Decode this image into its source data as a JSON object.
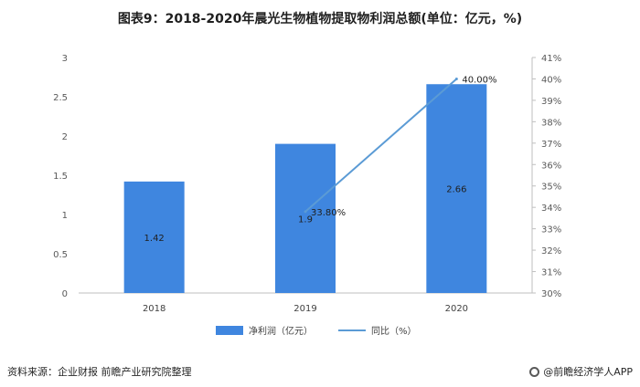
{
  "title": "图表9：2018-2020年晨光生物植物提取物利润总额(单位：亿元，%)",
  "footer": {
    "source": "资料来源：企业财报 前瞻产业研究院整理",
    "brand": "@前瞻经济学人APP"
  },
  "colors": {
    "bar": "#3f86df",
    "line": "#5b9bd5",
    "axis": "#bfbfbf"
  },
  "chart_data": {
    "type": "bar",
    "categories": [
      "2018",
      "2019",
      "2020"
    ],
    "series": [
      {
        "name": "净利润（亿元）",
        "type": "bar",
        "axis": "left",
        "values": [
          1.42,
          1.9,
          2.66
        ],
        "labels": [
          "1.42",
          "1.9",
          "2.66"
        ]
      },
      {
        "name": "同比（%）",
        "type": "line",
        "axis": "right",
        "values": [
          null,
          33.8,
          40.0
        ],
        "labels": [
          "",
          "33.80%",
          "40.00%"
        ]
      }
    ],
    "y_left": {
      "min": 0,
      "max": 3,
      "ticks": [
        "0",
        "0.5",
        "1",
        "1.5",
        "2",
        "2.5",
        "3"
      ]
    },
    "y_right": {
      "min": 30,
      "max": 41,
      "ticks": [
        "30%",
        "31%",
        "32%",
        "33%",
        "34%",
        "35%",
        "36%",
        "37%",
        "38%",
        "39%",
        "40%",
        "41%"
      ]
    },
    "legend_position": "bottom"
  }
}
